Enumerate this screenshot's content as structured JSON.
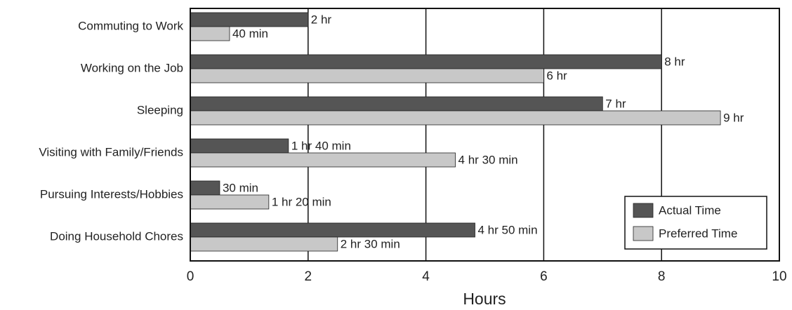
{
  "chart_data": {
    "type": "bar",
    "orientation": "horizontal",
    "categories": [
      "Commuting to Work",
      "Working on the Job",
      "Sleeping",
      "Visiting with Family/Friends",
      "Pursuing Interests/Hobbies",
      "Doing Household Chores"
    ],
    "series": [
      {
        "name": "Actual Time",
        "color": "#555555",
        "values": [
          2,
          8,
          7,
          1.667,
          0.5,
          4.833
        ],
        "value_labels": [
          "2 hr",
          "8 hr",
          "7 hr",
          "1 hr 40 min",
          "30 min",
          "4 hr 50 min"
        ]
      },
      {
        "name": "Preferred Time",
        "color": "#c8c8c8",
        "values": [
          0.667,
          6,
          9,
          4.5,
          1.333,
          2.5
        ],
        "value_labels": [
          "40 min",
          "6 hr",
          "9 hr",
          "4 hr 30 min",
          "1 hr 20 min",
          "2 hr 30 min"
        ]
      }
    ],
    "x_label": "Hours",
    "xlim": [
      0,
      10
    ],
    "xticks": [
      0,
      2,
      4,
      6,
      8,
      10
    ],
    "grid": true,
    "legend": "lower right"
  }
}
